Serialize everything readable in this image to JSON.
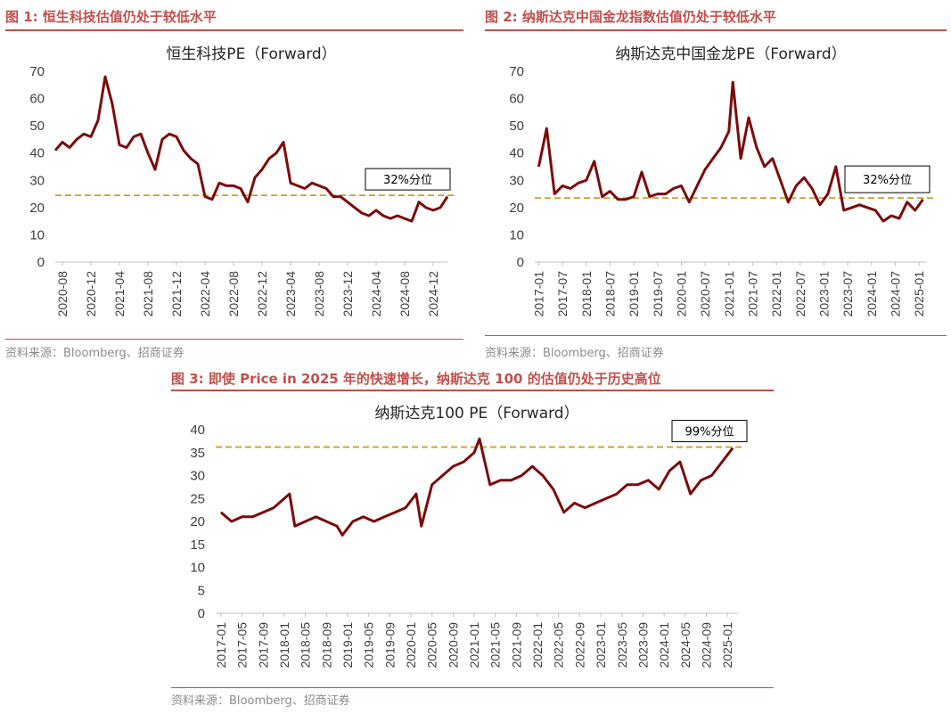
{
  "colors": {
    "accent": "#c0504d",
    "series": "#7b0b0b",
    "threshold": "#c9a227",
    "source": "#8c8c8c"
  },
  "figures": {
    "fig1": {
      "title": "图 1:  恒生科技估值仍处于较低水平",
      "source": "资料来源：Bloomberg、招商证券"
    },
    "fig2": {
      "title": "图 2:  纳斯达克中国金龙指数估值仍处于较低水平",
      "source": "资料来源：Bloomberg、招商证券"
    },
    "fig3": {
      "title": "图 3:  即使 Price in 2025 年的快速增长，纳斯达克 100 的估值仍处于历史高位",
      "source": "资料来源：Bloomberg、招商证券"
    }
  },
  "chart_data": [
    {
      "id": "fig1",
      "type": "line",
      "title": "恒生科技PE（Forward）",
      "xlabel": "",
      "ylabel": "",
      "ylim": [
        0,
        70
      ],
      "yticks": [
        0,
        10,
        20,
        30,
        40,
        50,
        60,
        70
      ],
      "x_range": [
        "2020-07",
        "2025-02"
      ],
      "categories": [
        "2020-08",
        "2020-12",
        "2021-04",
        "2021-08",
        "2021-12",
        "2022-04",
        "2022-08",
        "2022-12",
        "2023-04",
        "2023-08",
        "2023-12",
        "2024-04",
        "2024-08",
        "2024-12"
      ],
      "threshold": {
        "value": 24.5,
        "label": "32%分位"
      },
      "series": [
        {
          "name": "恒生科技PE（Forward）",
          "x": [
            "2020-07",
            "2020-08",
            "2020-09",
            "2020-10",
            "2020-11",
            "2020-12",
            "2021-01",
            "2021-02",
            "2021-03",
            "2021-04",
            "2021-05",
            "2021-06",
            "2021-07",
            "2021-08",
            "2021-09",
            "2021-10",
            "2021-11",
            "2021-12",
            "2022-01",
            "2022-02",
            "2022-03",
            "2022-04",
            "2022-05",
            "2022-06",
            "2022-07",
            "2022-08",
            "2022-09",
            "2022-10",
            "2022-11",
            "2022-12",
            "2023-01",
            "2023-02",
            "2023-03",
            "2023-04",
            "2023-05",
            "2023-06",
            "2023-07",
            "2023-08",
            "2023-09",
            "2023-10",
            "2023-11",
            "2023-12",
            "2024-01",
            "2024-02",
            "2024-03",
            "2024-04",
            "2024-05",
            "2024-06",
            "2024-07",
            "2024-08",
            "2024-09",
            "2024-10",
            "2024-11",
            "2024-12",
            "2025-01",
            "2025-02"
          ],
          "values": [
            41,
            44,
            42,
            45,
            47,
            46,
            52,
            68,
            58,
            43,
            42,
            46,
            47,
            40,
            34,
            45,
            47,
            46,
            41,
            38,
            36,
            24,
            23,
            29,
            28,
            28,
            27,
            22,
            31,
            34,
            38,
            40,
            44,
            29,
            28,
            27,
            29,
            28,
            27,
            24,
            24,
            22,
            20,
            18,
            17,
            19,
            17,
            16,
            17,
            16,
            15,
            22,
            20,
            19,
            20,
            24
          ]
        }
      ]
    },
    {
      "id": "fig2",
      "type": "line",
      "title": "纳斯达克中国金龙PE（Forward）",
      "xlabel": "",
      "ylabel": "",
      "ylim": [
        0,
        70
      ],
      "yticks": [
        0,
        10,
        20,
        30,
        40,
        50,
        60,
        70
      ],
      "x_range": [
        "2016-12",
        "2025-03"
      ],
      "categories": [
        "2017-01",
        "2017-07",
        "2018-01",
        "2018-07",
        "2019-01",
        "2019-07",
        "2020-01",
        "2020-07",
        "2021-01",
        "2021-07",
        "2022-01",
        "2022-07",
        "2023-01",
        "2023-07",
        "2024-01",
        "2024-07",
        "2025-01"
      ],
      "threshold": {
        "value": 23.5,
        "label": "32%分位"
      },
      "series": [
        {
          "name": "纳斯达克中国金龙PE（Forward）",
          "x": [
            "2017-01",
            "2017-03",
            "2017-05",
            "2017-07",
            "2017-09",
            "2017-11",
            "2018-01",
            "2018-03",
            "2018-05",
            "2018-07",
            "2018-09",
            "2018-11",
            "2019-01",
            "2019-03",
            "2019-05",
            "2019-07",
            "2019-09",
            "2019-11",
            "2020-01",
            "2020-03",
            "2020-05",
            "2020-07",
            "2020-09",
            "2020-11",
            "2021-01",
            "2021-02",
            "2021-04",
            "2021-06",
            "2021-08",
            "2021-10",
            "2021-12",
            "2022-02",
            "2022-04",
            "2022-06",
            "2022-08",
            "2022-10",
            "2022-12",
            "2023-02",
            "2023-04",
            "2023-06",
            "2023-08",
            "2023-10",
            "2023-12",
            "2024-02",
            "2024-04",
            "2024-06",
            "2024-08",
            "2024-10",
            "2024-12",
            "2025-02"
          ],
          "values": [
            35,
            49,
            25,
            28,
            27,
            29,
            30,
            37,
            24,
            26,
            23,
            23,
            24,
            33,
            24,
            25,
            25,
            27,
            28,
            22,
            28,
            34,
            38,
            42,
            48,
            66,
            38,
            53,
            42,
            35,
            38,
            30,
            22,
            28,
            31,
            27,
            21,
            25,
            35,
            19,
            20,
            21,
            20,
            19,
            15,
            17,
            16,
            22,
            19,
            23
          ]
        }
      ]
    },
    {
      "id": "fig3",
      "type": "line",
      "title": "纳斯达克100 PE（Forward）",
      "xlabel": "",
      "ylabel": "",
      "ylim": [
        0,
        40
      ],
      "yticks": [
        0,
        5,
        10,
        15,
        20,
        25,
        30,
        35,
        40
      ],
      "x_range": [
        "2016-12",
        "2025-03"
      ],
      "categories": [
        "2017-01",
        "2017-05",
        "2017-09",
        "2018-01",
        "2018-05",
        "2018-09",
        "2019-01",
        "2019-05",
        "2019-09",
        "2020-01",
        "2020-05",
        "2020-09",
        "2021-01",
        "2021-05",
        "2021-09",
        "2022-01",
        "2022-05",
        "2022-09",
        "2023-01",
        "2023-05",
        "2023-09",
        "2024-01",
        "2024-05",
        "2024-09",
        "2025-01"
      ],
      "threshold": {
        "value": 36.2,
        "label": "99%分位"
      },
      "series": [
        {
          "name": "纳斯达克100 PE（Forward）",
          "x": [
            "2017-01",
            "2017-03",
            "2017-05",
            "2017-07",
            "2017-09",
            "2017-11",
            "2018-01",
            "2018-02",
            "2018-03",
            "2018-05",
            "2018-07",
            "2018-09",
            "2018-11",
            "2018-12",
            "2019-02",
            "2019-04",
            "2019-06",
            "2019-08",
            "2019-10",
            "2019-12",
            "2020-02",
            "2020-03",
            "2020-05",
            "2020-07",
            "2020-09",
            "2020-11",
            "2021-01",
            "2021-02",
            "2021-04",
            "2021-06",
            "2021-08",
            "2021-10",
            "2021-12",
            "2022-02",
            "2022-04",
            "2022-06",
            "2022-08",
            "2022-10",
            "2022-12",
            "2023-02",
            "2023-04",
            "2023-06",
            "2023-08",
            "2023-10",
            "2023-12",
            "2024-02",
            "2024-04",
            "2024-06",
            "2024-08",
            "2024-10",
            "2024-12",
            "2025-02"
          ],
          "values": [
            22,
            20,
            21,
            21,
            22,
            23,
            25,
            26,
            19,
            20,
            21,
            20,
            19,
            17,
            20,
            21,
            20,
            21,
            22,
            23,
            26,
            19,
            28,
            30,
            32,
            33,
            35,
            38,
            28,
            29,
            29,
            30,
            32,
            30,
            27,
            22,
            24,
            23,
            24,
            25,
            26,
            28,
            28,
            29,
            27,
            31,
            33,
            26,
            29,
            30,
            33,
            36
          ]
        }
      ]
    }
  ]
}
